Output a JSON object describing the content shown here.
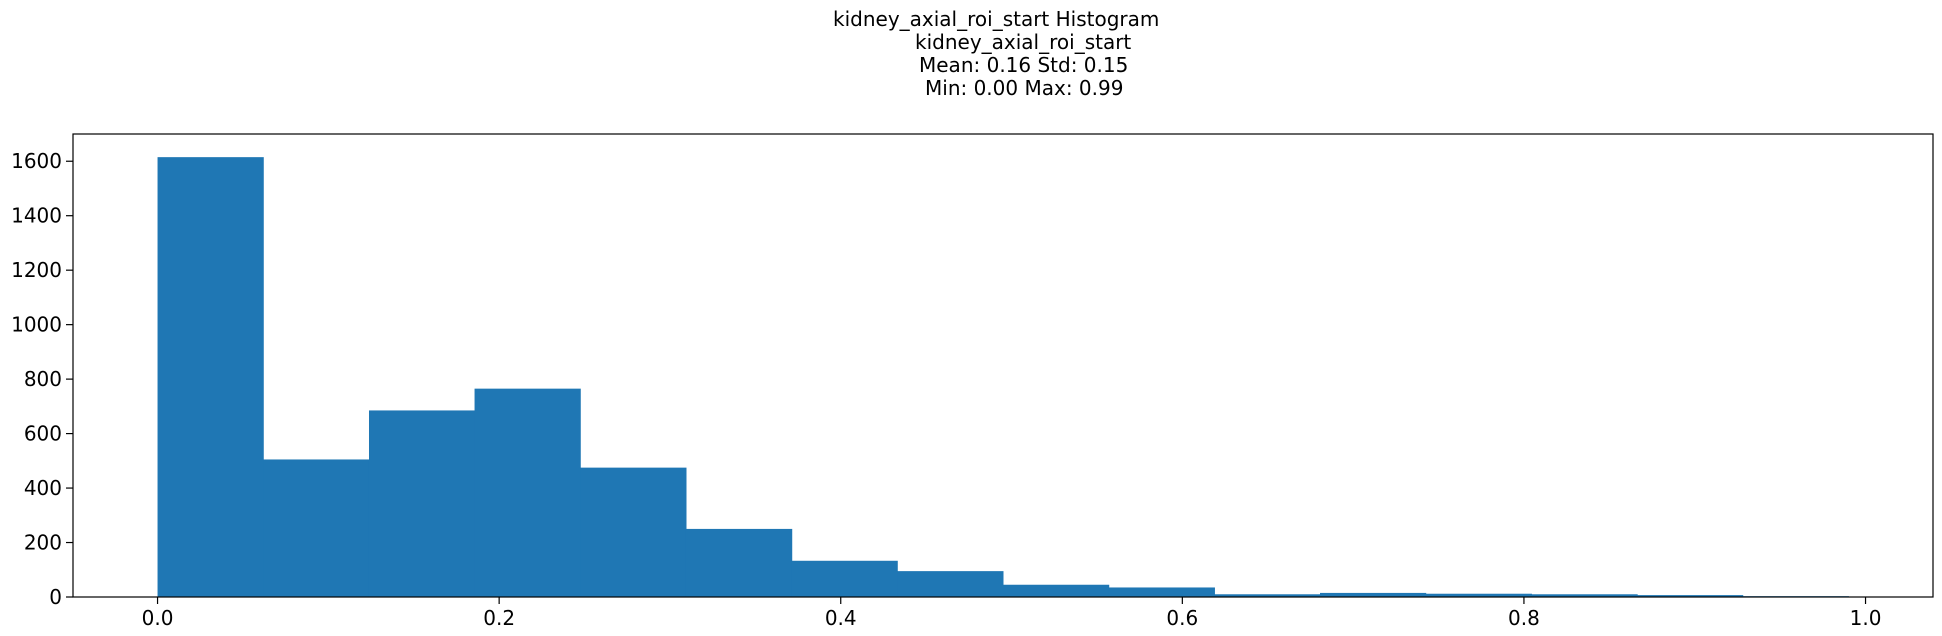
{
  "chart_data": {
    "type": "bar",
    "title_lines": [
      "kidney_axial_roi_start Histogram",
      "kidney_axial_roi_start",
      "Mean: 0.16 Std: 0.15",
      "Min: 0.00 Max: 0.99"
    ],
    "xlabel": "",
    "ylabel": "",
    "bin_edges": [
      0.0,
      0.0619,
      0.1238,
      0.1856,
      0.2475,
      0.3094,
      0.3713,
      0.4331,
      0.495,
      0.5569,
      0.6188,
      0.6806,
      0.7425,
      0.8044,
      0.8663,
      0.9281,
      0.99
    ],
    "values": [
      1615,
      505,
      685,
      765,
      475,
      250,
      133,
      95,
      45,
      35,
      10,
      15,
      12,
      10,
      7,
      3
    ],
    "xlim": [
      -0.0495,
      1.0395
    ],
    "ylim": [
      0,
      1700
    ],
    "xticks": [
      "0.0",
      "0.2",
      "0.4",
      "0.6",
      "0.8",
      "1.0"
    ],
    "yticks": [
      "0",
      "200",
      "400",
      "600",
      "800",
      "1000",
      "1200",
      "1400",
      "1600"
    ],
    "bar_color": "#1f77b4",
    "grid": false,
    "legend": "none"
  }
}
